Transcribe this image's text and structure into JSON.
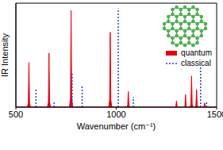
{
  "chart_data": {
    "type": "spectrum",
    "xlabel": "Wavenumber (cm⁻¹)",
    "ylabel": "IR Intensity",
    "xlim": [
      500,
      1500
    ],
    "xticks": [
      500,
      1000,
      1500
    ],
    "ylim": [
      0,
      1
    ],
    "tick_labels": "x",
    "legend": "right",
    "series": [
      {
        "name": "quantum",
        "type": "area",
        "color": "#e8000b",
        "x": [
          500,
          557,
          562,
          565,
          568,
          573,
          657,
          662,
          665,
          668,
          673,
          767,
          772,
          775,
          778,
          783,
          962,
          967,
          970,
          973,
          978,
          1052,
          1057,
          1060,
          1063,
          1068,
          1292,
          1297,
          1300,
          1303,
          1308,
          1337,
          1342,
          1345,
          1348,
          1353,
          1367,
          1372,
          1375,
          1378,
          1383,
          1392,
          1397,
          1400,
          1403,
          1408,
          1432,
          1437,
          1440,
          1443,
          1448,
          1500
        ],
        "values": [
          0,
          0,
          0.04,
          0.43,
          0.04,
          0,
          0,
          0.05,
          0.52,
          0.05,
          0,
          0,
          0.09,
          0.93,
          0.09,
          0,
          0,
          0.07,
          0.72,
          0.07,
          0,
          0,
          0.02,
          0.15,
          0.02,
          0,
          0,
          0.01,
          0.06,
          0.01,
          0,
          0,
          0.01,
          0.12,
          0.01,
          0,
          0,
          0.03,
          0.3,
          0.03,
          0,
          0,
          0.02,
          0.17,
          0.02,
          0,
          0,
          0.01,
          0.04,
          0.01,
          0,
          0
        ]
      },
      {
        "name": "classical",
        "type": "stem",
        "color": "#1f3bff",
        "line_style": "dotted",
        "x": [
          600,
          690,
          780,
          830,
          1010,
          1085,
          1420,
          1450
        ],
        "values": [
          0.18,
          0.05,
          0.32,
          0.2,
          0.95,
          0.1,
          0.4,
          0.05
        ]
      }
    ]
  }
}
